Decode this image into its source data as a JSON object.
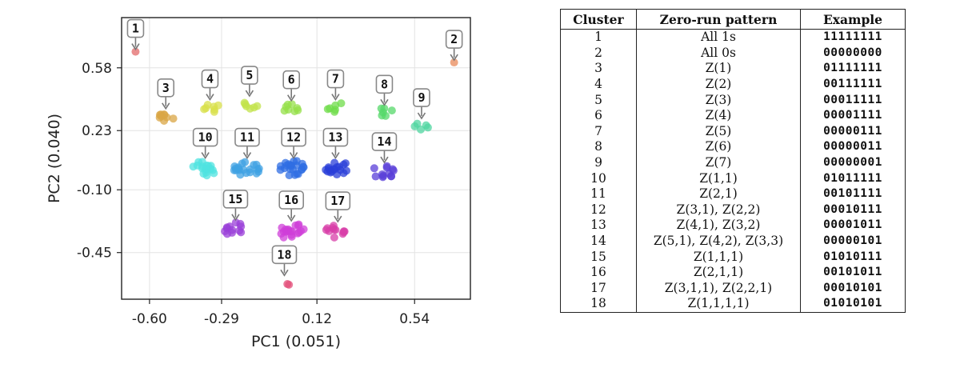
{
  "chart_data": {
    "type": "scatter",
    "xlabel": "PC1 (0.051)",
    "ylabel": "PC2 (0.040)",
    "xlim": [
      -0.72,
      0.78
    ],
    "ylim": [
      -0.71,
      0.86
    ],
    "xticks": [
      -0.6,
      -0.29,
      0.12,
      0.54
    ],
    "xtick_labels": [
      "-0.60",
      "-0.29",
      "0.12",
      "0.54"
    ],
    "yticks": [
      0.58,
      0.23,
      -0.1,
      -0.45
    ],
    "ytick_labels": [
      "0.58",
      "0.23",
      "-0.10",
      "-0.45"
    ],
    "grid": true,
    "clusters": [
      {
        "label": "1",
        "x": -0.66,
        "y": 0.67,
        "n": 1,
        "spread": 0.0,
        "color": "#e36a6a"
      },
      {
        "label": "2",
        "x": 0.71,
        "y": 0.61,
        "n": 1,
        "spread": 0.0,
        "color": "#e8895a"
      },
      {
        "label": "3",
        "x": -0.53,
        "y": 0.31,
        "n": 9,
        "spread": 0.03,
        "color": "#d9a544"
      },
      {
        "label": "4",
        "x": -0.34,
        "y": 0.36,
        "n": 7,
        "spread": 0.03,
        "color": "#d8e04a"
      },
      {
        "label": "5",
        "x": -0.17,
        "y": 0.38,
        "n": 6,
        "spread": 0.03,
        "color": "#c2e34a"
      },
      {
        "label": "6",
        "x": 0.01,
        "y": 0.35,
        "n": 8,
        "spread": 0.035,
        "color": "#95e04a"
      },
      {
        "label": "7",
        "x": 0.2,
        "y": 0.36,
        "n": 6,
        "spread": 0.03,
        "color": "#6fdc4a"
      },
      {
        "label": "8",
        "x": 0.41,
        "y": 0.33,
        "n": 6,
        "spread": 0.03,
        "color": "#55d86a"
      },
      {
        "label": "9",
        "x": 0.57,
        "y": 0.26,
        "n": 5,
        "spread": 0.025,
        "color": "#4fd6a0"
      },
      {
        "label": "10",
        "x": -0.36,
        "y": 0.02,
        "n": 18,
        "spread": 0.045,
        "color": "#4fe3e0"
      },
      {
        "label": "11",
        "x": -0.18,
        "y": 0.02,
        "n": 20,
        "spread": 0.045,
        "color": "#3fa2e3"
      },
      {
        "label": "12",
        "x": 0.02,
        "y": 0.02,
        "n": 22,
        "spread": 0.045,
        "color": "#2f6ee3"
      },
      {
        "label": "13",
        "x": 0.2,
        "y": 0.02,
        "n": 18,
        "spread": 0.045,
        "color": "#2a3fd8"
      },
      {
        "label": "14",
        "x": 0.41,
        "y": 0.0,
        "n": 12,
        "spread": 0.04,
        "color": "#5a3fd8"
      },
      {
        "label": "15",
        "x": -0.23,
        "y": -0.32,
        "n": 12,
        "spread": 0.04,
        "color": "#9a3fd8"
      },
      {
        "label": "16",
        "x": 0.01,
        "y": -0.33,
        "n": 20,
        "spread": 0.045,
        "color": "#cf3fd8"
      },
      {
        "label": "17",
        "x": 0.21,
        "y": -0.33,
        "n": 12,
        "spread": 0.04,
        "color": "#d83fa8"
      },
      {
        "label": "18",
        "x": -0.02,
        "y": -0.62,
        "n": 2,
        "spread": 0.03,
        "color": "#e34f7a"
      }
    ]
  },
  "table": {
    "headers": [
      "Cluster",
      "Zero-run pattern",
      "Example"
    ],
    "rows": [
      [
        "1",
        "All 1s",
        "11111111"
      ],
      [
        "2",
        "All 0s",
        "00000000"
      ],
      [
        "3",
        "Z(1)",
        "01111111"
      ],
      [
        "4",
        "Z(2)",
        "00111111"
      ],
      [
        "5",
        "Z(3)",
        "00011111"
      ],
      [
        "6",
        "Z(4)",
        "00001111"
      ],
      [
        "7",
        "Z(5)",
        "00000111"
      ],
      [
        "8",
        "Z(6)",
        "00000011"
      ],
      [
        "9",
        "Z(7)",
        "00000001"
      ],
      [
        "10",
        "Z(1,1)",
        "01011111"
      ],
      [
        "11",
        "Z(2,1)",
        "00101111"
      ],
      [
        "12",
        "Z(3,1), Z(2,2)",
        "00010111"
      ],
      [
        "13",
        "Z(4,1), Z(3,2)",
        "00001011"
      ],
      [
        "14",
        "Z(5,1), Z(4,2), Z(3,3)",
        "00000101"
      ],
      [
        "15",
        "Z(1,1,1)",
        "01010111"
      ],
      [
        "16",
        "Z(2,1,1)",
        "00101011"
      ],
      [
        "17",
        "Z(3,1,1), Z(2,2,1)",
        "00010101"
      ],
      [
        "18",
        "Z(1,1,1,1)",
        "01010101"
      ]
    ]
  }
}
